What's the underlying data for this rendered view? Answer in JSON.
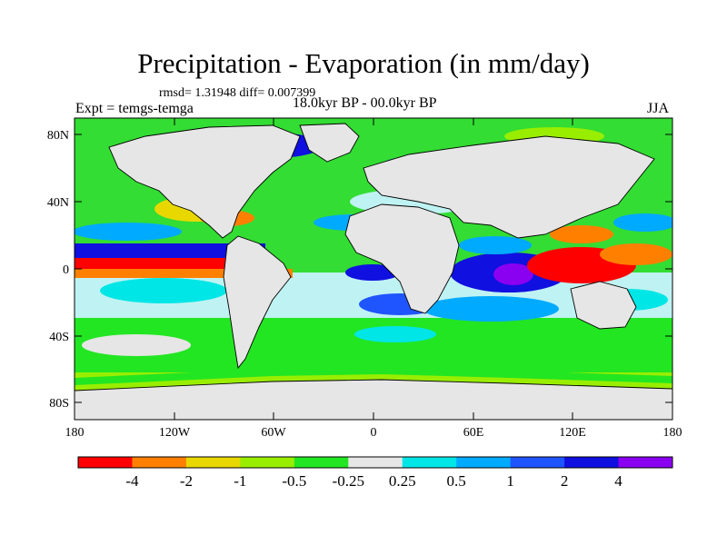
{
  "title": "Precipitation - Evaporation (in mm/day)",
  "stats": "rmsd= 1.31948 diff= 0.007399",
  "experiment": "Expt = temgs-temga",
  "period": "18.0kyr BP - 00.0kyr BP",
  "season": "JJA",
  "axes": {
    "x_ticks": [
      "180",
      "120W",
      "60W",
      "0",
      "60E",
      "120E",
      "180"
    ],
    "y_ticks": [
      "80N",
      "40N",
      "0",
      "40S",
      "80S"
    ]
  },
  "colorbar": {
    "colors": [
      "#ff0000",
      "#ff8000",
      "#e8d800",
      "#99ee00",
      "#22e622",
      "#e6e6e6",
      "#00e6e6",
      "#00aaff",
      "#1f55ff",
      "#1010e0",
      "#8a00f0"
    ],
    "labels": [
      "-4",
      "-2",
      "-1",
      "-0.5",
      "-0.25",
      "0.25",
      "0.5",
      "1",
      "2",
      "4"
    ]
  },
  "palette": {
    "land": "#e6e6e6",
    "ocean_base": "#cfeeee",
    "coast": "#000000"
  }
}
